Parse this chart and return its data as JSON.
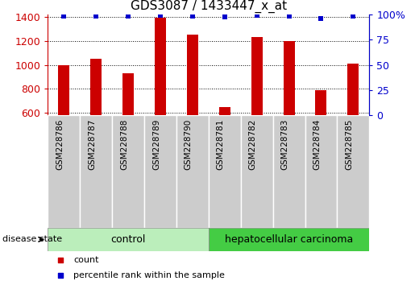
{
  "title": "GDS3087 / 1433447_x_at",
  "samples": [
    "GSM228786",
    "GSM228787",
    "GSM228788",
    "GSM228789",
    "GSM228790",
    "GSM228781",
    "GSM228782",
    "GSM228783",
    "GSM228784",
    "GSM228785"
  ],
  "bar_values": [
    1000,
    1048,
    928,
    1390,
    1250,
    648,
    1230,
    1200,
    790,
    1010
  ],
  "percentile_values": [
    98,
    98,
    98,
    99,
    98,
    97,
    99,
    98,
    96,
    98
  ],
  "ylim_left": [
    580,
    1420
  ],
  "ylim_right": [
    0,
    100
  ],
  "yticks_left": [
    600,
    800,
    1000,
    1200,
    1400
  ],
  "yticks_right": [
    0,
    25,
    50,
    75,
    100
  ],
  "bar_color": "#cc0000",
  "percentile_color": "#0000cc",
  "control_color": "#bbeebb",
  "carcinoma_color": "#44cc44",
  "control_label": "control",
  "carcinoma_label": "hepatocellular carcinoma",
  "n_control": 5,
  "n_carcinoma": 5,
  "legend_count_label": "count",
  "legend_percentile_label": "percentile rank within the sample",
  "disease_state_label": "disease state",
  "bar_width": 0.35,
  "xlabel_fontsize": 7.5,
  "ytick_fontsize": 9,
  "title_fontsize": 11
}
